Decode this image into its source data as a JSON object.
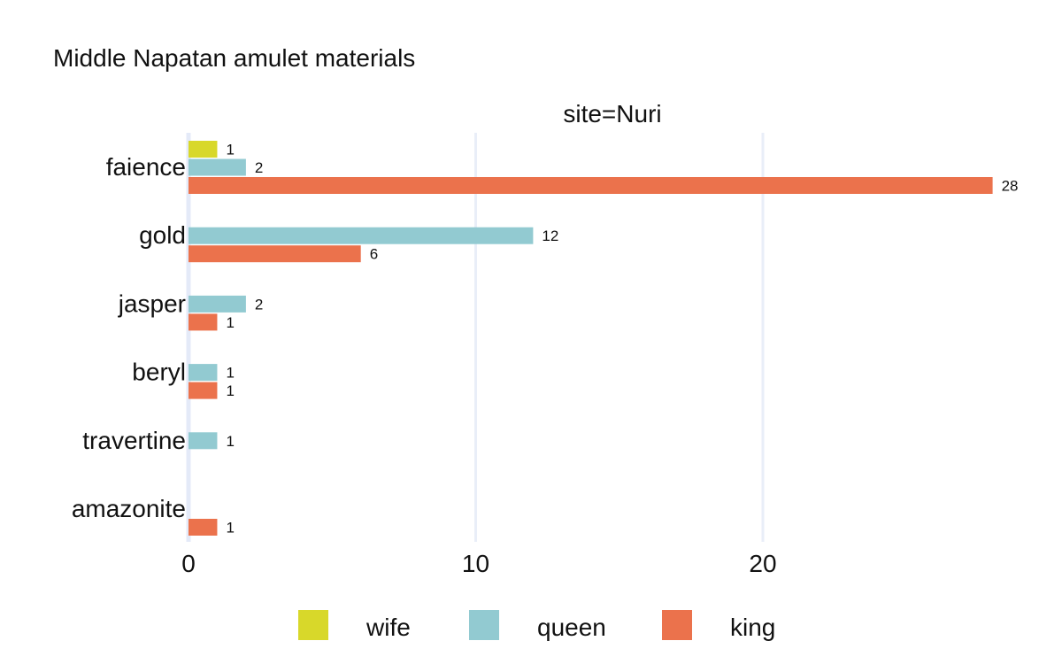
{
  "chart_data": {
    "type": "bar",
    "orientation": "horizontal",
    "title": "Middle Napatan amulet materials",
    "facet_label": "site=Nuri",
    "categories": [
      "faience",
      "gold",
      "jasper",
      "beryl",
      "travertine",
      "amazonite"
    ],
    "series": [
      {
        "name": "wife",
        "color": "#d8d82a",
        "values": [
          1,
          null,
          null,
          null,
          null,
          null
        ]
      },
      {
        "name": "queen",
        "color": "#92cad1",
        "values": [
          2,
          12,
          2,
          1,
          1,
          null
        ]
      },
      {
        "name": "king",
        "color": "#eb724c",
        "values": [
          28,
          6,
          1,
          1,
          null,
          1
        ]
      }
    ],
    "x_ticks": [
      "0",
      "10",
      "20"
    ],
    "xlim": [
      0,
      28
    ],
    "xlabel": "",
    "ylabel": "",
    "grid": true,
    "legend_position": "bottom",
    "data_labels": true
  }
}
